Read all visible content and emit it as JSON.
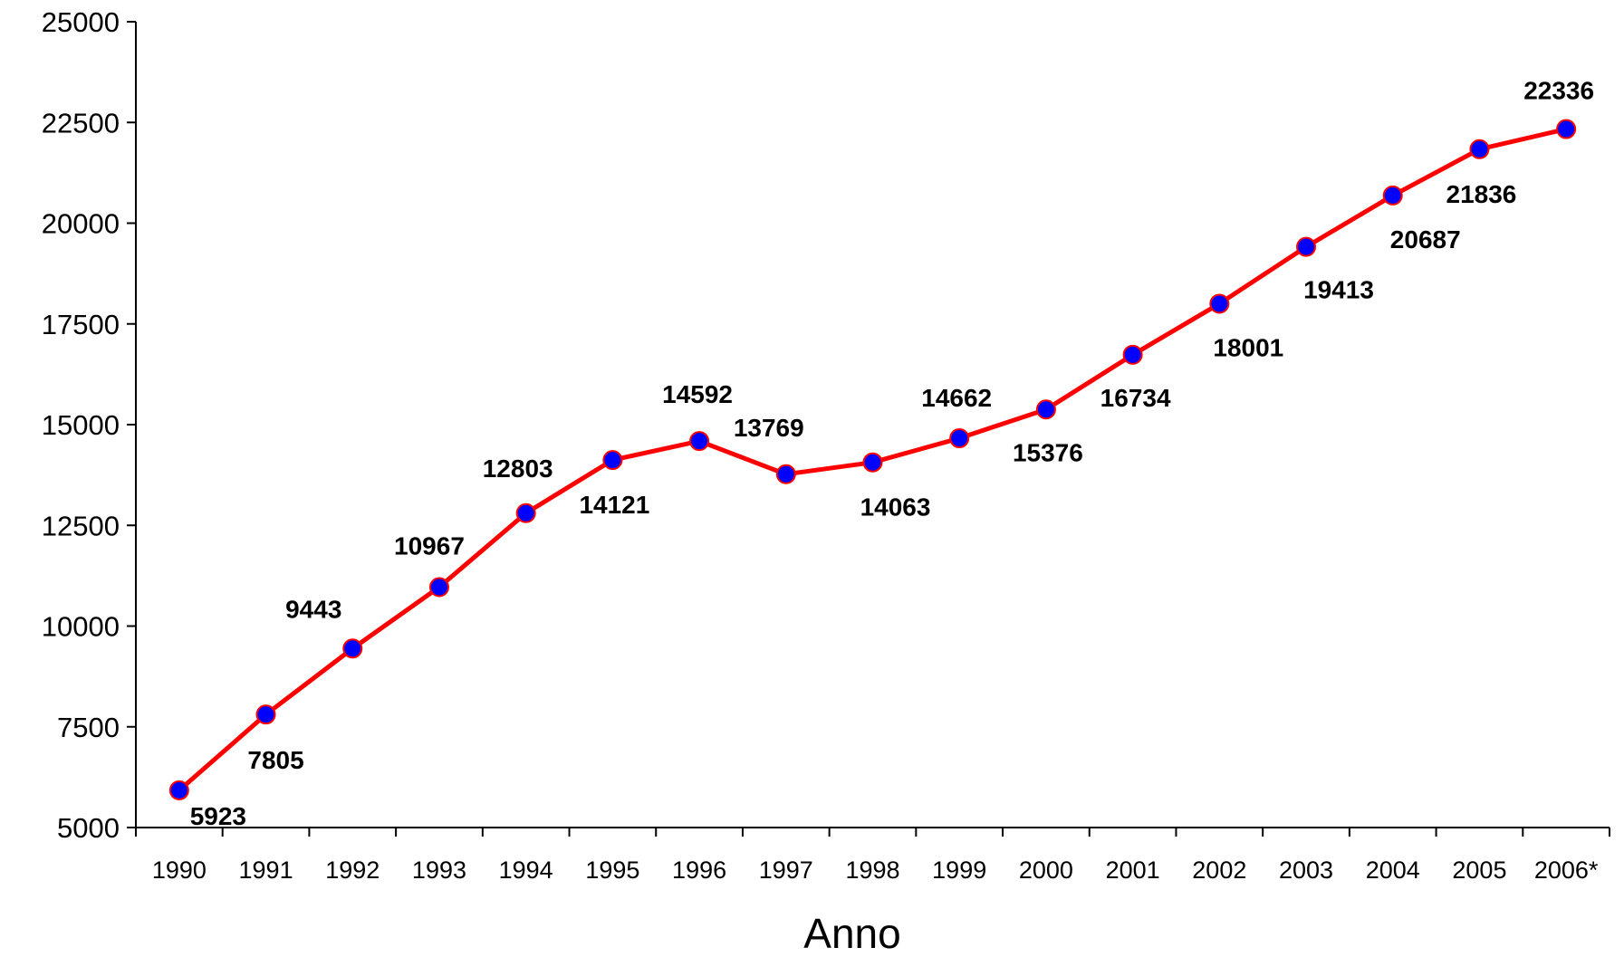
{
  "chart_data": {
    "type": "line",
    "title": "",
    "xlabel": "Anno",
    "ylabel": "",
    "categories": [
      "1990",
      "1991",
      "1992",
      "1993",
      "1994",
      "1995",
      "1996",
      "1997",
      "1998",
      "1999",
      "2000",
      "2001",
      "2002",
      "2003",
      "2004",
      "2005",
      "2006*"
    ],
    "series": [
      {
        "values": [
          5923,
          7805,
          9443,
          10967,
          12803,
          14121,
          14592,
          13769,
          14063,
          14662,
          15376,
          16734,
          18001,
          19413,
          20687,
          21836,
          22336
        ],
        "data_labels": [
          "5923",
          "7805",
          "9443",
          "10967",
          "12803",
          "14121",
          "14592",
          "13769",
          "14063",
          "14662",
          "15376",
          "16734",
          "18001",
          "19413",
          "20687",
          "21836",
          "22336"
        ],
        "line_color": "#ff0000",
        "marker_color": "#0000ff",
        "marker_edge_color": "#ff0000"
      }
    ],
    "ylim": [
      5000,
      25000
    ],
    "yticks": [
      5000,
      7500,
      10000,
      12500,
      15000,
      17500,
      20000,
      22500,
      25000
    ],
    "ytick_labels": [
      "5000",
      "7500",
      "10000",
      "12500",
      "15000",
      "17500",
      "20000",
      "22500",
      "25000"
    ],
    "grid": false,
    "legend": "none"
  }
}
